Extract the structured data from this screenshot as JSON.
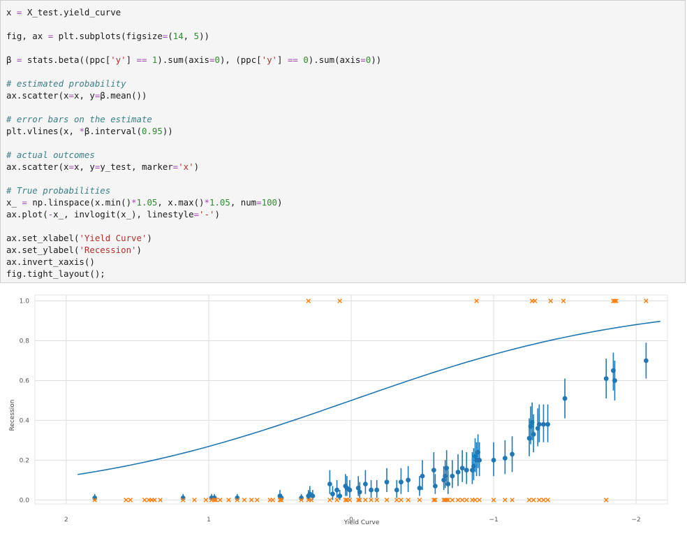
{
  "code_cell": {
    "lines": [
      [
        {
          "t": "x ",
          "c": ""
        },
        {
          "t": "=",
          "c": "op"
        },
        {
          "t": " X_test.yield_curve",
          "c": ""
        }
      ],
      [],
      [
        {
          "t": "fig, ax ",
          "c": ""
        },
        {
          "t": "=",
          "c": "op"
        },
        {
          "t": " plt.subplots(figsize",
          "c": ""
        },
        {
          "t": "=",
          "c": "op"
        },
        {
          "t": "(",
          "c": ""
        },
        {
          "t": "14",
          "c": "num"
        },
        {
          "t": ", ",
          "c": ""
        },
        {
          "t": "5",
          "c": "num"
        },
        {
          "t": "))",
          "c": ""
        }
      ],
      [],
      [
        {
          "t": "β ",
          "c": ""
        },
        {
          "t": "=",
          "c": "op"
        },
        {
          "t": " stats.beta((ppc[",
          "c": ""
        },
        {
          "t": "'y'",
          "c": "str"
        },
        {
          "t": "] ",
          "c": ""
        },
        {
          "t": "==",
          "c": "op"
        },
        {
          "t": " ",
          "c": ""
        },
        {
          "t": "1",
          "c": "num"
        },
        {
          "t": ").sum(axis",
          "c": ""
        },
        {
          "t": "=",
          "c": "op"
        },
        {
          "t": "0",
          "c": "num"
        },
        {
          "t": "), (ppc[",
          "c": ""
        },
        {
          "t": "'y'",
          "c": "str"
        },
        {
          "t": "] ",
          "c": ""
        },
        {
          "t": "==",
          "c": "op"
        },
        {
          "t": " ",
          "c": ""
        },
        {
          "t": "0",
          "c": "num"
        },
        {
          "t": ").sum(axis",
          "c": ""
        },
        {
          "t": "=",
          "c": "op"
        },
        {
          "t": "0",
          "c": "num"
        },
        {
          "t": "))",
          "c": ""
        }
      ],
      [],
      [
        {
          "t": "# estimated probability",
          "c": "com"
        }
      ],
      [
        {
          "t": "ax.scatter(x",
          "c": ""
        },
        {
          "t": "=",
          "c": "op"
        },
        {
          "t": "x, y",
          "c": ""
        },
        {
          "t": "=",
          "c": "op"
        },
        {
          "t": "β.mean())",
          "c": ""
        }
      ],
      [],
      [
        {
          "t": "# error bars on the estimate",
          "c": "com"
        }
      ],
      [
        {
          "t": "plt.vlines(x, ",
          "c": ""
        },
        {
          "t": "*",
          "c": "op"
        },
        {
          "t": "β.interval(",
          "c": ""
        },
        {
          "t": "0.95",
          "c": "num"
        },
        {
          "t": "))",
          "c": ""
        }
      ],
      [],
      [
        {
          "t": "# actual outcomes",
          "c": "com"
        }
      ],
      [
        {
          "t": "ax.scatter(x",
          "c": ""
        },
        {
          "t": "=",
          "c": "op"
        },
        {
          "t": "x, y",
          "c": ""
        },
        {
          "t": "=",
          "c": "op"
        },
        {
          "t": "y_test, marker",
          "c": ""
        },
        {
          "t": "=",
          "c": "op"
        },
        {
          "t": "'x'",
          "c": "str"
        },
        {
          "t": ")",
          "c": ""
        }
      ],
      [],
      [
        {
          "t": "# True probabilities",
          "c": "com"
        }
      ],
      [
        {
          "t": "x_ ",
          "c": ""
        },
        {
          "t": "=",
          "c": "op"
        },
        {
          "t": " np.linspace(x.min()",
          "c": ""
        },
        {
          "t": "*",
          "c": "op"
        },
        {
          "t": "1.05",
          "c": "num"
        },
        {
          "t": ", x.max()",
          "c": ""
        },
        {
          "t": "*",
          "c": "op"
        },
        {
          "t": "1.05",
          "c": "num"
        },
        {
          "t": ", num",
          "c": ""
        },
        {
          "t": "=",
          "c": "op"
        },
        {
          "t": "100",
          "c": "num"
        },
        {
          "t": ")",
          "c": ""
        }
      ],
      [
        {
          "t": "ax.plot(",
          "c": ""
        },
        {
          "t": "-",
          "c": "op"
        },
        {
          "t": "x_, invlogit(x_), linestyle",
          "c": ""
        },
        {
          "t": "=",
          "c": "op"
        },
        {
          "t": "'-'",
          "c": "str"
        },
        {
          "t": ")",
          "c": ""
        }
      ],
      [],
      [
        {
          "t": "ax.set_xlabel(",
          "c": ""
        },
        {
          "t": "'Yield Curve'",
          "c": "str"
        },
        {
          "t": ")",
          "c": ""
        }
      ],
      [
        {
          "t": "ax.set_ylabel(",
          "c": ""
        },
        {
          "t": "'Recession'",
          "c": "str"
        },
        {
          "t": ")",
          "c": ""
        }
      ],
      [
        {
          "t": "ax.invert_xaxis()",
          "c": ""
        }
      ],
      [
        {
          "t": "fig.tight_layout();",
          "c": ""
        }
      ]
    ]
  },
  "chart_data": {
    "type": "scatter",
    "xlabel": "Yield Curve",
    "ylabel": "Recession",
    "x_inverted": true,
    "xlim": [
      2.22,
      -2.22
    ],
    "ylim": [
      -0.02,
      1.03
    ],
    "xticks": [
      2,
      1,
      0,
      -1,
      -2
    ],
    "xtick_labels": [
      "2",
      "1",
      "0",
      "−1",
      "−2"
    ],
    "yticks": [
      0.0,
      0.2,
      0.4,
      0.6,
      0.8,
      1.0
    ],
    "ytick_labels": [
      "0.0",
      "0.2",
      "0.4",
      "0.6",
      "0.8",
      "1.0"
    ],
    "grid": true,
    "colors": {
      "estimate": "#1f77b4",
      "outcome": "#ff7f0e",
      "curve": "#1f77b4",
      "grid": "#dddddd"
    },
    "estimate_series": {
      "x": [
        1.8,
        1.18,
        0.98,
        0.96,
        0.8,
        0.5,
        0.49,
        0.35,
        0.3,
        0.29,
        0.27,
        0.15,
        0.13,
        0.1,
        0.08,
        0.04,
        0.03,
        0.01,
        -0.05,
        -0.06,
        -0.1,
        -0.14,
        -0.18,
        -0.25,
        -0.32,
        -0.35,
        -0.4,
        -0.48,
        -0.5,
        -0.58,
        -0.59,
        -0.65,
        -0.66,
        -0.67,
        -0.68,
        -0.71,
        -0.75,
        -0.78,
        -0.81,
        -0.85,
        -0.86,
        -0.87,
        -0.88,
        -0.89,
        -0.9,
        -1.0,
        -1.08,
        -1.13,
        -1.25,
        -1.26,
        -1.27,
        -1.28,
        -1.31,
        -1.32,
        -1.35,
        -1.38,
        -1.5,
        -1.79,
        -1.84,
        -1.85,
        -2.07
      ],
      "mean": [
        0.01,
        0.01,
        0.01,
        0.01,
        0.01,
        0.02,
        0.01,
        0.01,
        0.02,
        0.03,
        0.02,
        0.08,
        0.03,
        0.05,
        0.02,
        0.07,
        0.06,
        0.05,
        0.06,
        0.04,
        0.08,
        0.05,
        0.05,
        0.09,
        0.05,
        0.09,
        0.1,
        0.06,
        0.12,
        0.15,
        0.07,
        0.1,
        0.12,
        0.16,
        0.08,
        0.12,
        0.14,
        0.16,
        0.15,
        0.15,
        0.17,
        0.22,
        0.2,
        0.24,
        0.2,
        0.2,
        0.21,
        0.23,
        0.31,
        0.37,
        0.39,
        0.33,
        0.36,
        0.38,
        0.38,
        0.38,
        0.51,
        0.61,
        0.65,
        0.6,
        0.7
      ],
      "lower": [
        0.0,
        0.0,
        0.0,
        0.0,
        0.0,
        0.0,
        0.0,
        0.0,
        0.0,
        0.0,
        0.0,
        0.03,
        0.0,
        0.01,
        0.0,
        0.02,
        0.02,
        0.01,
        0.02,
        0.01,
        0.03,
        0.01,
        0.01,
        0.04,
        0.01,
        0.03,
        0.04,
        0.02,
        0.05,
        0.08,
        0.03,
        0.05,
        0.06,
        0.09,
        0.03,
        0.06,
        0.07,
        0.09,
        0.08,
        0.08,
        0.1,
        0.14,
        0.12,
        0.16,
        0.12,
        0.12,
        0.13,
        0.14,
        0.22,
        0.28,
        0.3,
        0.24,
        0.27,
        0.29,
        0.29,
        0.29,
        0.41,
        0.51,
        0.55,
        0.5,
        0.61
      ],
      "upper": [
        0.03,
        0.03,
        0.03,
        0.03,
        0.03,
        0.05,
        0.03,
        0.03,
        0.05,
        0.07,
        0.05,
        0.15,
        0.07,
        0.1,
        0.05,
        0.13,
        0.12,
        0.1,
        0.12,
        0.09,
        0.15,
        0.1,
        0.1,
        0.16,
        0.1,
        0.16,
        0.17,
        0.12,
        0.2,
        0.24,
        0.13,
        0.17,
        0.2,
        0.25,
        0.15,
        0.2,
        0.23,
        0.25,
        0.24,
        0.24,
        0.26,
        0.31,
        0.29,
        0.33,
        0.29,
        0.29,
        0.3,
        0.32,
        0.41,
        0.47,
        0.49,
        0.43,
        0.46,
        0.48,
        0.48,
        0.48,
        0.61,
        0.71,
        0.74,
        0.7,
        0.79
      ]
    },
    "outcome_series": {
      "x_y1": [
        0.3,
        0.08,
        -0.88,
        -1.27,
        -1.29,
        -1.4,
        -1.49,
        -1.84,
        -1.85,
        -1.86,
        -2.07
      ],
      "x_y0": [
        1.8,
        1.58,
        1.55,
        1.45,
        1.42,
        1.4,
        1.38,
        1.34,
        1.18,
        1.1,
        1.02,
        0.98,
        0.96,
        0.95,
        0.92,
        0.86,
        0.8,
        0.75,
        0.7,
        0.66,
        0.57,
        0.55,
        0.5,
        0.49,
        0.35,
        0.3,
        0.28,
        0.15,
        0.1,
        0.04,
        0.03,
        0.01,
        -0.05,
        -0.06,
        -0.1,
        -0.14,
        -0.18,
        -0.25,
        -0.32,
        -0.35,
        -0.4,
        -0.48,
        -0.58,
        -0.59,
        -0.65,
        -0.66,
        -0.67,
        -0.68,
        -0.71,
        -0.75,
        -0.78,
        -0.81,
        -0.85,
        -0.87,
        -0.9,
        -1.0,
        -1.08,
        -1.13,
        -1.25,
        -1.28,
        -1.32,
        -1.35,
        -1.38,
        -1.79
      ]
    },
    "curve_series": {
      "xmin": -2.17,
      "xmax": 1.92,
      "label": ""
    }
  }
}
